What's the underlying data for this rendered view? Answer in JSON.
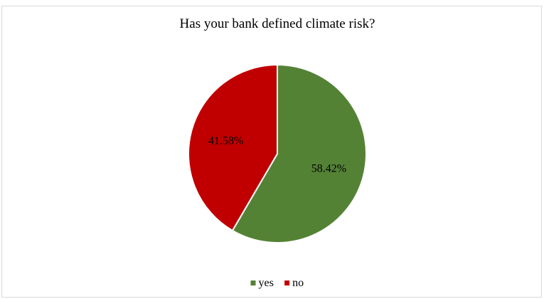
{
  "chart_data": {
    "type": "pie",
    "title": "Has your bank defined climate risk?",
    "categories": [
      "yes",
      "no"
    ],
    "values": [
      58.42,
      41.58
    ],
    "labels": [
      "58.42%",
      "41.58%"
    ],
    "colors": [
      "#548235",
      "#C00000"
    ],
    "start_angle_deg": 0,
    "direction": "clockwise",
    "legend": {
      "position": "bottom",
      "entries": [
        "yes",
        "no"
      ]
    }
  }
}
